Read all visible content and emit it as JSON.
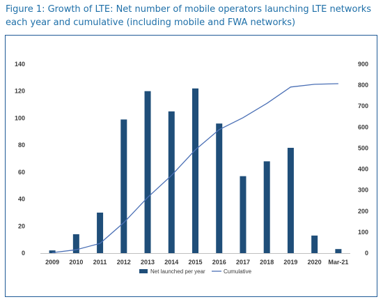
{
  "figure": {
    "title": "Figure 1: Growth of LTE: Net number of mobile operators launching LTE networks each year and cumulative (including mobile and FWA networks)"
  },
  "chart_data": {
    "type": "bar",
    "title": "",
    "xlabel": "",
    "ylabel": "",
    "categories": [
      "2009",
      "2010",
      "2011",
      "2012",
      "2013",
      "2014",
      "2015",
      "2016",
      "2017",
      "2018",
      "2019",
      "2020",
      "Mar-21"
    ],
    "series": [
      {
        "name": "Net launched per year",
        "type": "bar",
        "axis": "left",
        "color": "#1f4e79",
        "values": [
          2,
          14,
          30,
          99,
          120,
          105,
          122,
          96,
          57,
          68,
          78,
          13,
          3
        ]
      },
      {
        "name": "Cumulative",
        "type": "line",
        "axis": "right",
        "color": "#4a6fb5",
        "values": [
          2,
          16,
          46,
          145,
          265,
          370,
          492,
          588,
          645,
          713,
          791,
          804,
          807
        ]
      }
    ],
    "ylim": [
      0,
      140
    ],
    "yticks": [
      0,
      20,
      40,
      60,
      80,
      100,
      120,
      140
    ],
    "y2lim": [
      0,
      900
    ],
    "y2ticks": [
      0,
      100,
      200,
      300,
      400,
      500,
      600,
      700,
      800,
      900
    ],
    "grid": false,
    "legend": "bottom"
  }
}
